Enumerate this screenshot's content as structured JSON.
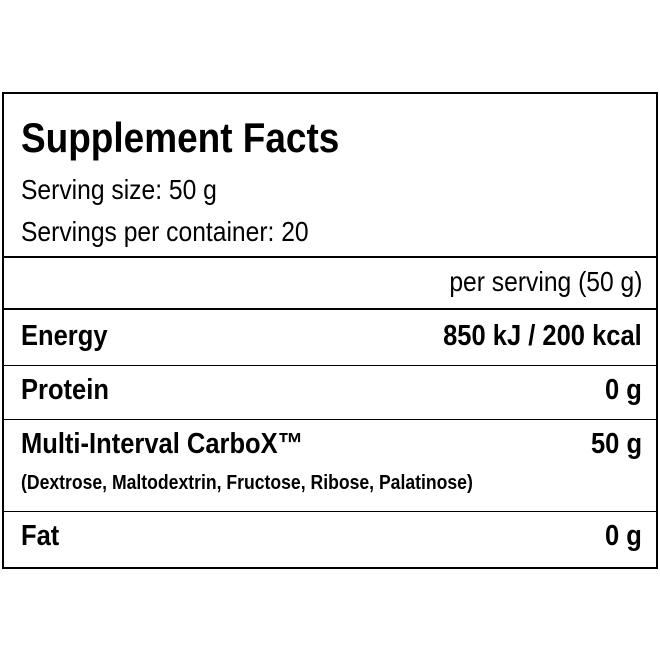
{
  "title": "Supplement Facts",
  "serving_size": "Serving size: 50 g",
  "servings_per_container": "Servings per container: 20",
  "column_header": "per serving (50 g)",
  "rows": [
    {
      "name": "Energy",
      "value": "850 kJ / 200 kcal"
    },
    {
      "name": "Protein",
      "value": "0 g"
    },
    {
      "name": "Multi-Interval CarboX™",
      "value": "50 g",
      "sub": "(Dextrose, Maltodextrin, Fructose, Ribose, Palatinose)"
    },
    {
      "name": "Fat",
      "value": "0 g"
    }
  ]
}
